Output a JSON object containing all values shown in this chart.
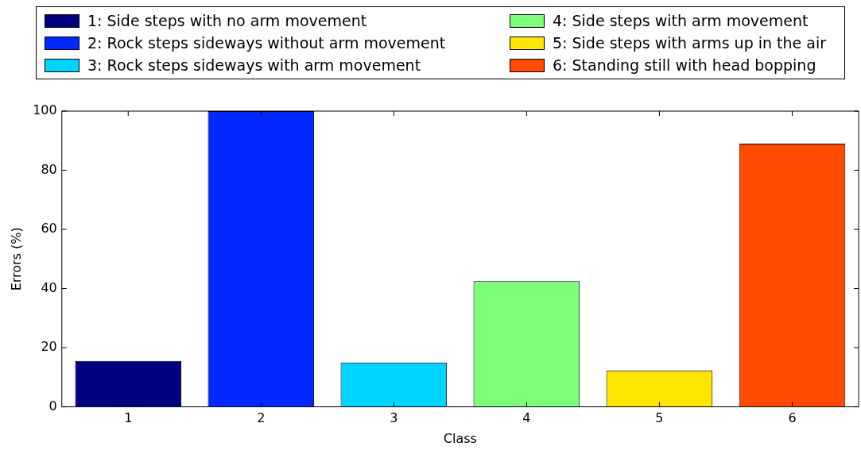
{
  "chart_data": {
    "type": "bar",
    "xlabel": "Class",
    "ylabel": "Errors (%)",
    "categories": [
      "1",
      "2",
      "3",
      "4",
      "5",
      "6"
    ],
    "series": [
      {
        "name": "1: Side steps with no arm movement",
        "color": "#000080",
        "values": [
          15.5,
          null,
          null,
          null,
          null,
          null
        ]
      },
      {
        "name": "2: Rock steps sideways without arm movement",
        "color": "#0028ff",
        "values": [
          null,
          100,
          null,
          null,
          null,
          null
        ]
      },
      {
        "name": "3: Rock steps sideways with arm movement",
        "color": "#00d4ff",
        "values": [
          null,
          null,
          15,
          null,
          null,
          null
        ]
      },
      {
        "name": "4: Side steps with arm movement",
        "color": "#7dff7a",
        "values": [
          null,
          null,
          null,
          42.5,
          null,
          null
        ]
      },
      {
        "name": "5: Side steps with arms up in the air",
        "color": "#ffe600",
        "values": [
          null,
          null,
          null,
          null,
          12.3,
          null
        ]
      },
      {
        "name": "6: Standing still with head bopping",
        "color": "#ff4a00",
        "values": [
          null,
          null,
          null,
          null,
          null,
          89
        ]
      }
    ],
    "ylim": [
      0,
      100
    ],
    "yticks": [
      0,
      20,
      40,
      60,
      80,
      100
    ],
    "legend": "top",
    "grid": false
  }
}
